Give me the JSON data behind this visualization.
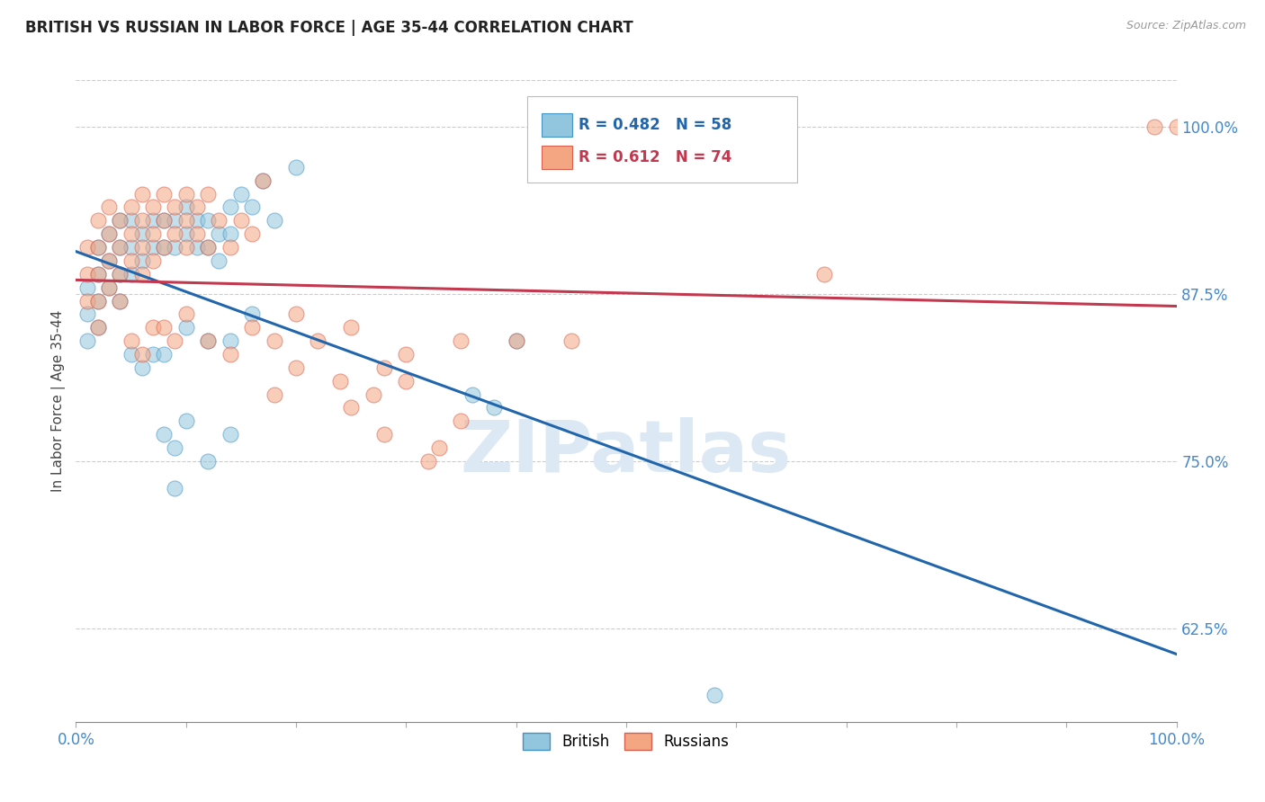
{
  "title": "BRITISH VS RUSSIAN IN LABOR FORCE | AGE 35-44 CORRELATION CHART",
  "source_text": "Source: ZipAtlas.com",
  "ylabel": "In Labor Force | Age 35-44",
  "xlim": [
    0.0,
    1.0
  ],
  "ylim": [
    0.555,
    1.035
  ],
  "ytick_labels": [
    "62.5%",
    "75.0%",
    "87.5%",
    "100.0%"
  ],
  "ytick_values": [
    0.625,
    0.75,
    0.875,
    1.0
  ],
  "legend_R_brit": "R = 0.482",
  "legend_N_brit": "N = 58",
  "legend_R_russ": "R = 0.612",
  "legend_N_russ": "N = 74",
  "british_color": "#92c5de",
  "russian_color": "#f4a582",
  "british_edge_color": "#4393c3",
  "russian_edge_color": "#d6604d",
  "british_line_color": "#2166ac",
  "russian_line_color": "#c2384e",
  "grid_color": "#cccccc",
  "background_color": "#ffffff",
  "watermark_text": "ZIPatlas",
  "watermark_color": "#dce9f5",
  "title_color": "#222222",
  "axis_label_color": "#444444",
  "tick_label_color": "#4488cc",
  "british_x": [
    0.01,
    0.01,
    0.01,
    0.02,
    0.02,
    0.02,
    0.02,
    0.03,
    0.03,
    0.03,
    0.04,
    0.04,
    0.04,
    0.04,
    0.05,
    0.05,
    0.05,
    0.06,
    0.06,
    0.07,
    0.07,
    0.08,
    0.08,
    0.09,
    0.09,
    0.1,
    0.1,
    0.11,
    0.11,
    0.12,
    0.12,
    0.13,
    0.13,
    0.14,
    0.14,
    0.15,
    0.16,
    0.17,
    0.18,
    0.2,
    0.05,
    0.06,
    0.07,
    0.08,
    0.1,
    0.12,
    0.14,
    0.16,
    0.08,
    0.09,
    0.1,
    0.12,
    0.14,
    0.09,
    0.36,
    0.38,
    0.4,
    0.58
  ],
  "british_y": [
    0.88,
    0.86,
    0.84,
    0.91,
    0.89,
    0.87,
    0.85,
    0.92,
    0.9,
    0.88,
    0.93,
    0.91,
    0.89,
    0.87,
    0.93,
    0.91,
    0.89,
    0.92,
    0.9,
    0.93,
    0.91,
    0.93,
    0.91,
    0.93,
    0.91,
    0.94,
    0.92,
    0.93,
    0.91,
    0.93,
    0.91,
    0.92,
    0.9,
    0.94,
    0.92,
    0.95,
    0.94,
    0.96,
    0.93,
    0.97,
    0.83,
    0.82,
    0.83,
    0.83,
    0.85,
    0.84,
    0.84,
    0.86,
    0.77,
    0.76,
    0.78,
    0.75,
    0.77,
    0.73,
    0.8,
    0.79,
    0.84,
    0.575
  ],
  "russian_x": [
    0.01,
    0.01,
    0.01,
    0.02,
    0.02,
    0.02,
    0.02,
    0.02,
    0.03,
    0.03,
    0.03,
    0.03,
    0.04,
    0.04,
    0.04,
    0.04,
    0.05,
    0.05,
    0.05,
    0.06,
    0.06,
    0.06,
    0.06,
    0.07,
    0.07,
    0.07,
    0.08,
    0.08,
    0.08,
    0.09,
    0.09,
    0.1,
    0.1,
    0.1,
    0.11,
    0.11,
    0.12,
    0.12,
    0.13,
    0.14,
    0.15,
    0.16,
    0.17,
    0.05,
    0.06,
    0.07,
    0.08,
    0.09,
    0.1,
    0.12,
    0.14,
    0.16,
    0.18,
    0.2,
    0.22,
    0.25,
    0.28,
    0.3,
    0.35,
    0.18,
    0.2,
    0.25,
    0.3,
    0.35,
    0.28,
    0.27,
    0.24,
    0.4,
    0.45,
    0.32,
    0.33,
    0.98,
    1.0,
    0.68
  ],
  "russian_y": [
    0.91,
    0.89,
    0.87,
    0.93,
    0.91,
    0.89,
    0.87,
    0.85,
    0.94,
    0.92,
    0.9,
    0.88,
    0.93,
    0.91,
    0.89,
    0.87,
    0.94,
    0.92,
    0.9,
    0.95,
    0.93,
    0.91,
    0.89,
    0.94,
    0.92,
    0.9,
    0.95,
    0.93,
    0.91,
    0.94,
    0.92,
    0.95,
    0.93,
    0.91,
    0.94,
    0.92,
    0.95,
    0.91,
    0.93,
    0.91,
    0.93,
    0.92,
    0.96,
    0.84,
    0.83,
    0.85,
    0.85,
    0.84,
    0.86,
    0.84,
    0.83,
    0.85,
    0.84,
    0.86,
    0.84,
    0.85,
    0.82,
    0.83,
    0.84,
    0.8,
    0.82,
    0.79,
    0.81,
    0.78,
    0.77,
    0.8,
    0.81,
    0.84,
    0.84,
    0.75,
    0.76,
    1.0,
    1.0,
    0.89
  ]
}
